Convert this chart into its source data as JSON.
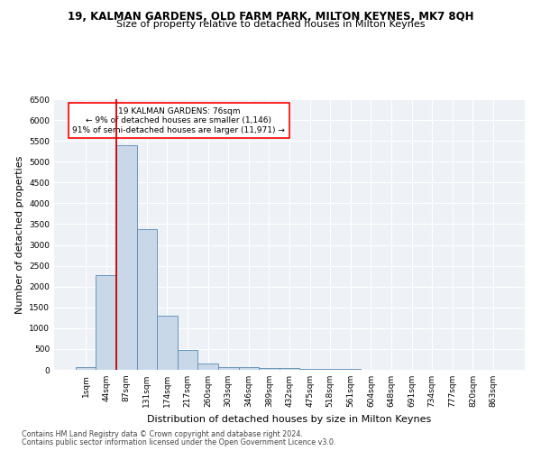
{
  "title1": "19, KALMAN GARDENS, OLD FARM PARK, MILTON KEYNES, MK7 8QH",
  "title2": "Size of property relative to detached houses in Milton Keynes",
  "xlabel": "Distribution of detached houses by size in Milton Keynes",
  "ylabel": "Number of detached properties",
  "footnote1": "Contains HM Land Registry data © Crown copyright and database right 2024.",
  "footnote2": "Contains public sector information licensed under the Open Government Licence v3.0.",
  "bar_labels": [
    "1sqm",
    "44sqm",
    "87sqm",
    "131sqm",
    "174sqm",
    "217sqm",
    "260sqm",
    "303sqm",
    "346sqm",
    "389sqm",
    "432sqm",
    "475sqm",
    "518sqm",
    "561sqm",
    "604sqm",
    "648sqm",
    "691sqm",
    "734sqm",
    "777sqm",
    "820sqm",
    "863sqm"
  ],
  "bar_values": [
    75,
    2280,
    5400,
    3370,
    1300,
    480,
    160,
    75,
    60,
    50,
    40,
    30,
    25,
    15,
    10,
    5,
    3,
    2,
    1,
    1,
    0
  ],
  "bar_color": "#c8d8e8",
  "bar_edge_color": "#5a8ab0",
  "ylim": [
    0,
    6500
  ],
  "yticks": [
    0,
    500,
    1000,
    1500,
    2000,
    2500,
    3000,
    3500,
    4000,
    4500,
    5000,
    5500,
    6000,
    6500
  ],
  "vline_x": 1.5,
  "vline_color": "#cc0000",
  "annotation_text": "19 KALMAN GARDENS: 76sqm\n← 9% of detached houses are smaller (1,146)\n91% of semi-detached houses are larger (11,971) →",
  "bg_color": "#eef2f7",
  "grid_color": "#ffffff",
  "title1_fontsize": 8.5,
  "title2_fontsize": 8,
  "xlabel_fontsize": 8,
  "ylabel_fontsize": 8,
  "tick_fontsize": 6.5,
  "footnote_fontsize": 5.8
}
